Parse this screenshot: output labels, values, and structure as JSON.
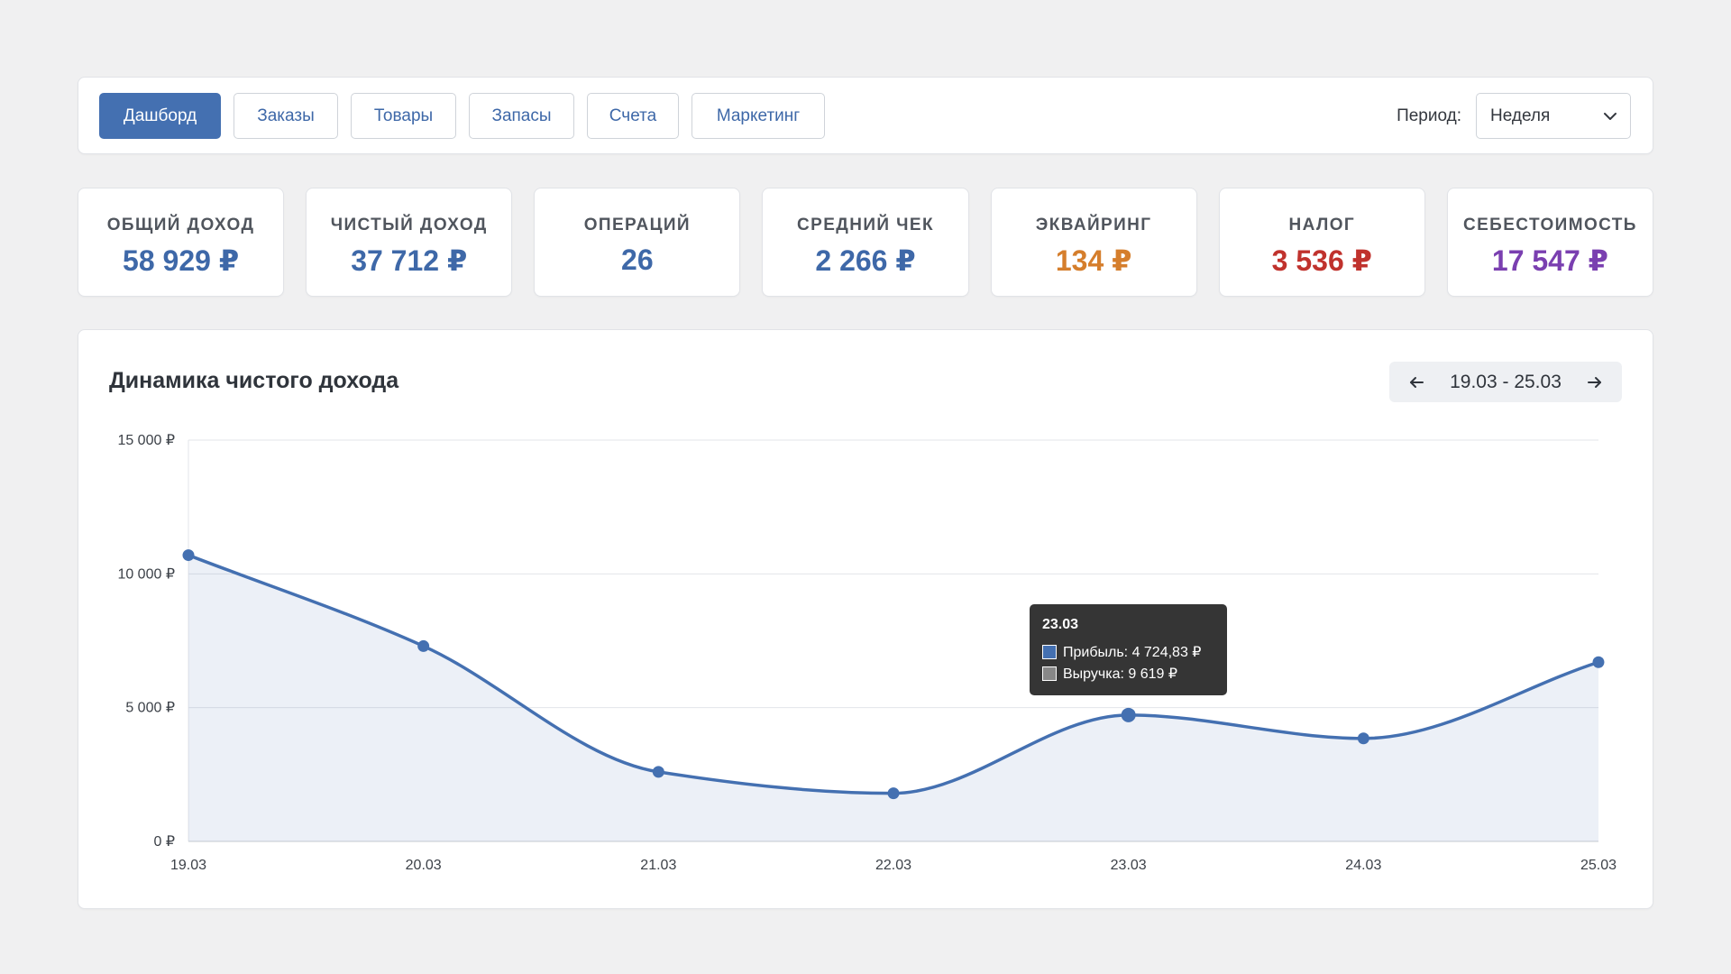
{
  "nav": {
    "tabs": [
      {
        "label": "Дашборд",
        "active": true
      },
      {
        "label": "Заказы",
        "active": false
      },
      {
        "label": "Товары",
        "active": false
      },
      {
        "label": "Запасы",
        "active": false
      },
      {
        "label": "Счета",
        "active": false
      },
      {
        "label": "Маркетинг",
        "active": false
      }
    ],
    "period_label": "Период:",
    "period_value": "Неделя",
    "period_icon": "chevron-down-icon"
  },
  "stats": [
    {
      "label": "Общий доход",
      "value": "58 929 ₽",
      "color": "#3e68a8"
    },
    {
      "label": "Чистый доход",
      "value": "37 712 ₽",
      "color": "#3e68a8"
    },
    {
      "label": "Операций",
      "value": "26",
      "color": "#3e68a8"
    },
    {
      "label": "Средний чек",
      "value": "2 266 ₽",
      "color": "#3e68a8"
    },
    {
      "label": "Эквайринг",
      "value": "134 ₽",
      "color": "#d57e2c"
    },
    {
      "label": "Налог",
      "value": "3 536 ₽",
      "color": "#c0322d"
    },
    {
      "label": "Себестоимость",
      "value": "17 547 ₽",
      "color": "#7a3fb0"
    }
  ],
  "chart": {
    "title": "Динамика чистого дохода",
    "range": "19.03 - 25.03",
    "prev_icon": "arrow-left-icon",
    "next_icon": "arrow-right-icon",
    "tooltip": {
      "title": "23.03",
      "rows": [
        {
          "text": "Прибыль: 4 724,83 ₽",
          "color": "#4470b1"
        },
        {
          "text": "Выручка: 9 619 ₽",
          "color": "#888888"
        }
      ]
    }
  },
  "chart_data": {
    "type": "area",
    "categories": [
      "19.03",
      "20.03",
      "21.03",
      "22.03",
      "23.03",
      "24.03",
      "25.03"
    ],
    "series": [
      {
        "name": "Прибыль",
        "values": [
          10700,
          7300,
          2600,
          1800,
          4725,
          3850,
          6700
        ],
        "color": "#4470b1"
      }
    ],
    "ylim": [
      0,
      15000
    ],
    "yticks": [
      0,
      5000,
      10000,
      15000
    ],
    "ytick_labels": [
      "0 ₽",
      "5 000 ₽",
      "10 000 ₽",
      "15 000 ₽"
    ],
    "grid": true,
    "highlight_index": 4
  }
}
